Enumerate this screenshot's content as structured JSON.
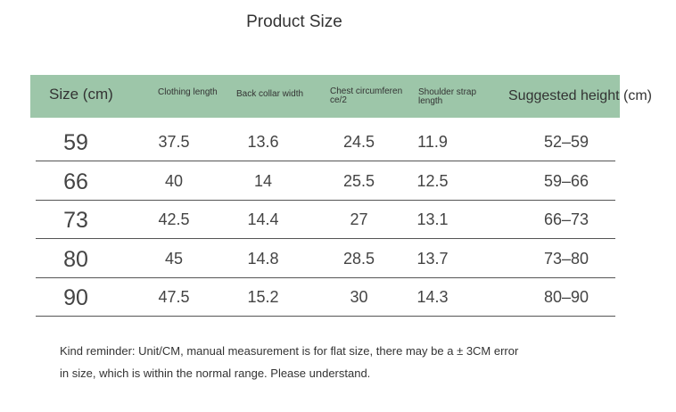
{
  "title": "Product Size",
  "headers": [
    "Size (cm)",
    "Clothing length",
    "Back collar width",
    "Chest circumferen ce/2",
    "Shoulder strap length",
    "Suggested height (cm)"
  ],
  "rows": [
    [
      "59",
      "37.5",
      "13.6",
      "24.5",
      "11.9",
      "52–59"
    ],
    [
      "66",
      "40",
      "14",
      "25.5",
      "12.5",
      "59–66"
    ],
    [
      "73",
      "42.5",
      "14.4",
      "27",
      "13.1",
      "66–73"
    ],
    [
      "80",
      "45",
      "14.8",
      "28.5",
      "13.7",
      "73–80"
    ],
    [
      "90",
      "47.5",
      "15.2",
      "30",
      "14.3",
      "80–90"
    ]
  ],
  "note": [
    "Kind reminder: Unit/CM, manual measurement is for flat size, there may be a ± 3CM error",
    "in size, which is within the normal range. Please understand."
  ],
  "colors": {
    "header_bg": "#9dc6a9"
  }
}
